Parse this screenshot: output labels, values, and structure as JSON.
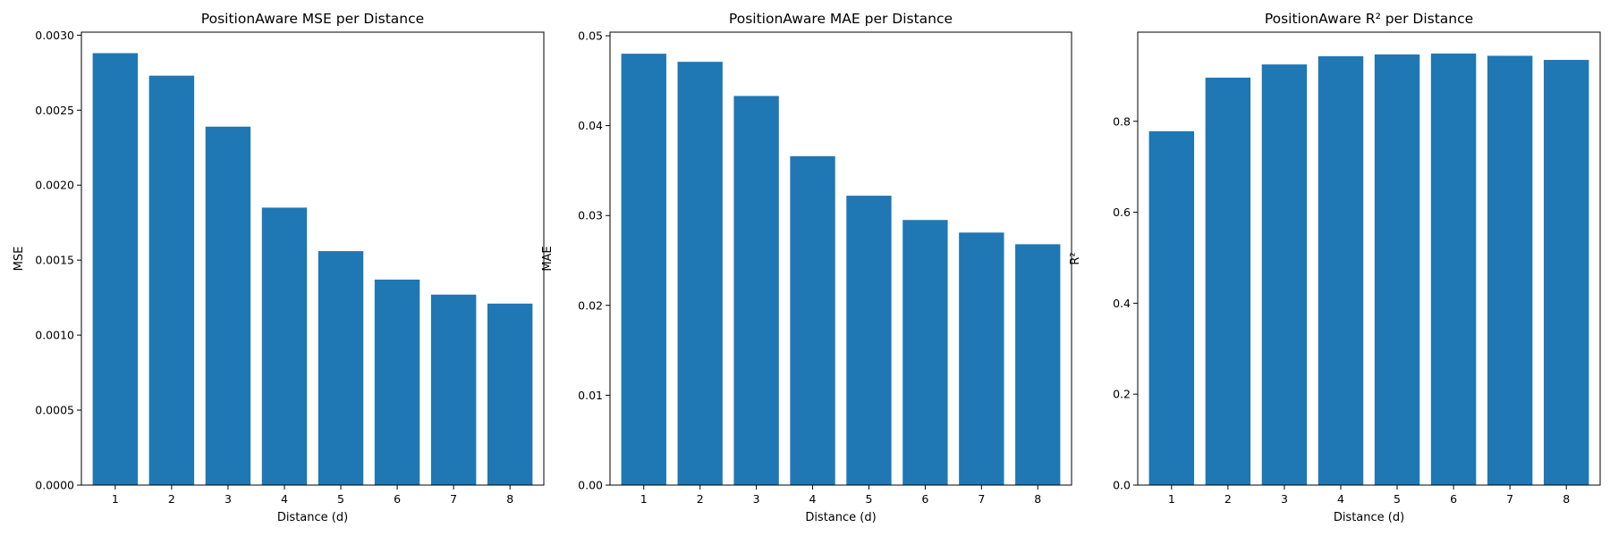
{
  "chart_data": [
    {
      "type": "bar",
      "title": "PositionAware MSE per Distance",
      "xlabel": "Distance (d)",
      "ylabel": "MSE",
      "categories": [
        "1",
        "2",
        "3",
        "4",
        "5",
        "6",
        "7",
        "8"
      ],
      "values": [
        0.00288,
        0.00273,
        0.00239,
        0.00185,
        0.00156,
        0.00137,
        0.00127,
        0.00121
      ],
      "ylim": [
        0,
        0.00302
      ],
      "yticks": [
        "0.0000",
        "0.0005",
        "0.0010",
        "0.0015",
        "0.0020",
        "0.0025",
        "0.0030"
      ],
      "ytick_values": [
        0,
        0.0005,
        0.001,
        0.0015,
        0.002,
        0.0025,
        0.003
      ],
      "color": "#1f77b4",
      "grid": false
    },
    {
      "type": "bar",
      "title": "PositionAware MAE per Distance",
      "xlabel": "Distance (d)",
      "ylabel": "MAE",
      "categories": [
        "1",
        "2",
        "3",
        "4",
        "5",
        "6",
        "7",
        "8"
      ],
      "values": [
        0.048,
        0.0471,
        0.0433,
        0.0366,
        0.0322,
        0.0295,
        0.0281,
        0.0268
      ],
      "ylim": [
        0,
        0.0504
      ],
      "yticks": [
        "0.00",
        "0.01",
        "0.02",
        "0.03",
        "0.04",
        "0.05"
      ],
      "ytick_values": [
        0,
        0.01,
        0.02,
        0.03,
        0.04,
        0.05
      ],
      "color": "#1f77b4",
      "grid": false
    },
    {
      "type": "bar",
      "title": "PositionAware R² per Distance",
      "xlabel": "Distance (d)",
      "ylabel": "R²",
      "categories": [
        "1",
        "2",
        "3",
        "4",
        "5",
        "6",
        "7",
        "8"
      ],
      "values": [
        0.778,
        0.896,
        0.925,
        0.943,
        0.947,
        0.949,
        0.944,
        0.935
      ],
      "ylim": [
        0,
        0.996
      ],
      "yticks": [
        "0.0",
        "0.2",
        "0.4",
        "0.6",
        "0.8"
      ],
      "ytick_values": [
        0,
        0.2,
        0.4,
        0.6,
        0.8
      ],
      "color": "#1f77b4",
      "grid": false
    }
  ]
}
